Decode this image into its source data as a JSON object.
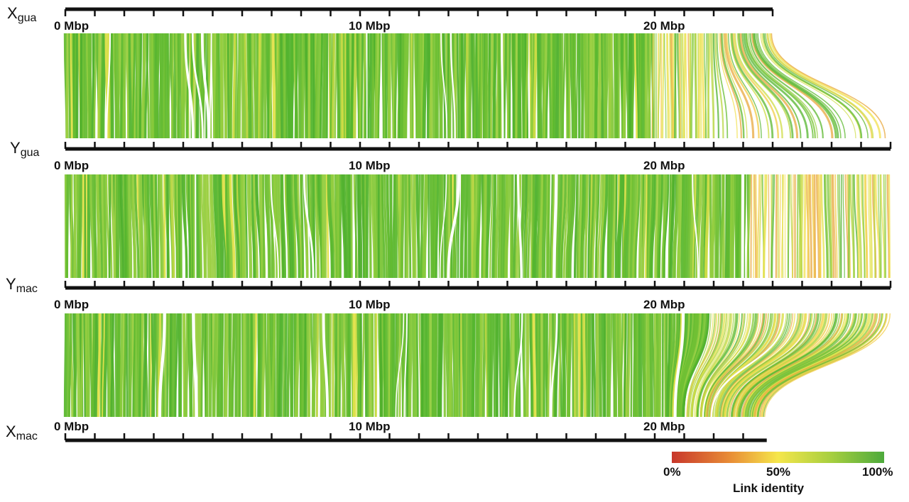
{
  "tracks": [
    {
      "id": "xgua",
      "name": "X",
      "sub": "gua",
      "length_mbp": 24.0,
      "ticks": [
        "0 Mbp",
        "10 Mbp",
        "20 Mbp"
      ]
    },
    {
      "id": "ygua",
      "name": "Y",
      "sub": "gua",
      "length_mbp": 28.0,
      "ticks": [
        "0 Mbp",
        "10 Mbp",
        "20 Mbp"
      ]
    },
    {
      "id": "ymac",
      "name": "Y",
      "sub": "mac",
      "length_mbp": 28.0,
      "ticks": [
        "0 Mbp",
        "10 Mbp",
        "20 Mbp"
      ]
    },
    {
      "id": "xmac",
      "name": "X",
      "sub": "mac",
      "length_mbp": 23.8,
      "ticks": [
        "0 Mbp",
        "10 Mbp",
        "20 Mbp"
      ]
    }
  ],
  "links": [
    {
      "from": "xgua",
      "to": "ygua",
      "divergence": "high at right end"
    },
    {
      "from": "ygua",
      "to": "ymac",
      "divergence": "high at right end"
    },
    {
      "from": "ymac",
      "to": "xmac",
      "divergence": "high at right end"
    }
  ],
  "legend": {
    "title": "Link identity",
    "labels": [
      "0%",
      "50%",
      "100%"
    ],
    "colors": [
      "#c8372b",
      "#e98f36",
      "#f5e64b",
      "#a7cf3f",
      "#4daa3c"
    ]
  }
}
